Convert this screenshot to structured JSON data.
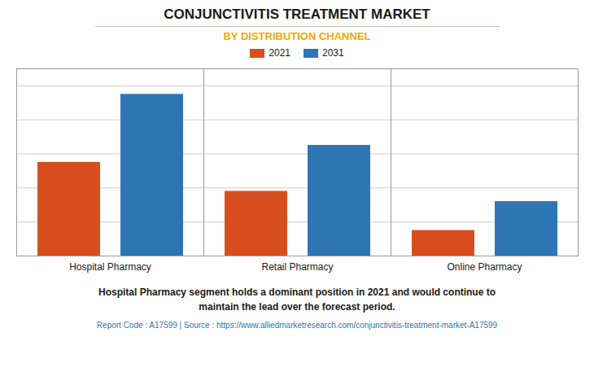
{
  "chart_data": {
    "type": "bar",
    "title": "CONJUNCTIVITIS TREATMENT MARKET",
    "subtitle": "BY DISTRIBUTION CHANNEL",
    "categories": [
      "Hospital Pharmacy",
      "Retail Pharmacy",
      "Online Pharmacy"
    ],
    "series": [
      {
        "name": "2021",
        "color": "#d94e1f",
        "values": [
          5.5,
          3.8,
          1.5
        ]
      },
      {
        "name": "2031",
        "color": "#2e75b6",
        "values": [
          9.5,
          6.5,
          3.2
        ]
      }
    ],
    "ylim": [
      0,
      11
    ],
    "yticks": [
      0,
      2,
      4,
      6,
      8,
      10
    ],
    "grid": true,
    "legend": "top",
    "tick_labels": "x",
    "annotations": [
      "Hospital Pharmacy segment holds a dominant position in 2021 and would continue to\nmaintain the lead over the forecast period.",
      "Report Code : A17599  |  Source : https://www.alliedmarketresearch.com/conjunctivitis-treatment-market-A17599"
    ]
  }
}
